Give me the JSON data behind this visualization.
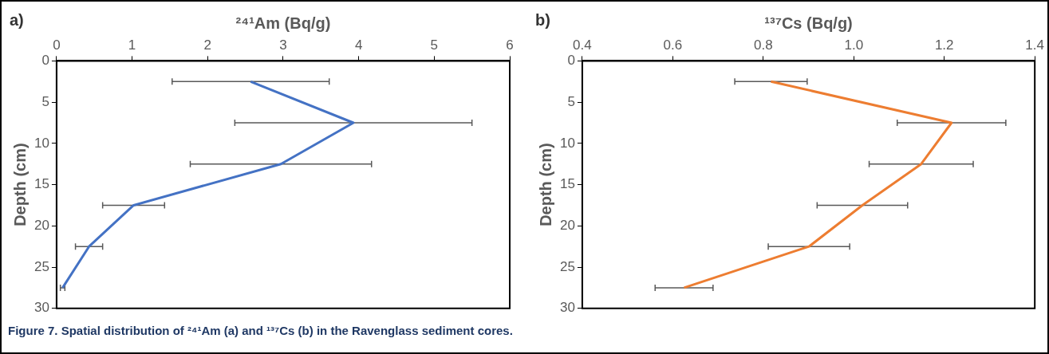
{
  "chart_data": [
    {
      "type": "line",
      "title": "a)",
      "xlabel": "²⁴¹Am (Bq/g)",
      "ylabel": "Depth (cm)",
      "orientation": "horizontal",
      "x": [
        2.5,
        7.5,
        12.5,
        17.5,
        22.5,
        27.5
      ],
      "series": [
        {
          "color": "#4472c4",
          "values": [
            2.57,
            3.93,
            2.97,
            1.02,
            0.43,
            0.08
          ],
          "errors": [
            1.04,
            1.57,
            1.2,
            0.41,
            0.18,
            0.03
          ]
        }
      ],
      "xlim": [
        0,
        6
      ],
      "xticks": [
        0,
        1,
        2,
        3,
        4,
        5,
        6
      ],
      "ylim": [
        30,
        0
      ],
      "yticks": [
        0,
        5,
        10,
        15,
        20,
        25,
        30
      ],
      "grid": false,
      "marker": "none",
      "legend": false,
      "annotations": [
        "Figure 7. Spatial distribution of ²⁴¹Am (a) and ¹³⁷Cs (b) in the Ravenglass sediment cores."
      ]
    },
    {
      "type": "line",
      "title": "b)",
      "xlabel": "¹³⁷Cs (Bq/g)",
      "ylabel": "Depth (cm)",
      "orientation": "horizontal",
      "x": [
        2.5,
        7.5,
        12.5,
        17.5,
        22.5,
        27.5
      ],
      "series": [
        {
          "color": "#ed7d31",
          "values": [
            0.817,
            1.216,
            1.149,
            1.019,
            0.901,
            0.625
          ],
          "errors": [
            0.08,
            0.12,
            0.115,
            0.1,
            0.09,
            0.064
          ]
        }
      ],
      "xlim": [
        0.4,
        1.4
      ],
      "xticks": [
        {
          "value": 0.4,
          "label": "0.4"
        },
        {
          "value": 0.6,
          "label": "0.6"
        },
        {
          "value": 0.8,
          "label": "0.8"
        },
        {
          "value": 1.0,
          "label": "1.0"
        },
        {
          "value": 1.2,
          "label": "1.2"
        },
        {
          "value": 1.4,
          "label": "1.4"
        }
      ],
      "ylim": [
        30,
        0
      ],
      "yticks": [
        0,
        5,
        10,
        15,
        20,
        25,
        30
      ],
      "grid": false,
      "marker": "none",
      "legend": false
    }
  ]
}
